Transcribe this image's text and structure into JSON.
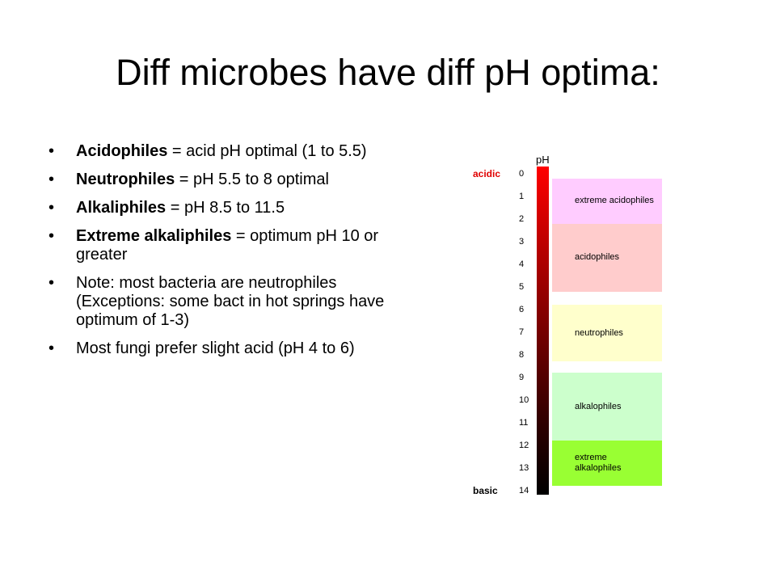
{
  "title": "Diff microbes have diff pH optima:",
  "bullets": [
    {
      "bold": "Acidophiles",
      "text": " = acid pH optimal (1 to 5.5)"
    },
    {
      "bold": "Neutrophiles",
      "text": " = pH 5.5 to 8 optimal"
    },
    {
      "bold": "Alkaliphiles",
      "text": " = pH 8.5 to 11.5"
    },
    {
      "bold": "Extreme alkaliphiles",
      "text": " = optimum pH 10 or greater"
    },
    {
      "bold": "",
      "text": "Note: most bacteria are neutrophiles (Exceptions: some bact in hot springs have optimum of 1-3)"
    },
    {
      "bold": "",
      "text": "Most fungi prefer slight acid (pH 4 to 6)"
    }
  ],
  "bullet_glyph": "•",
  "diagram": {
    "ph_label": "pH",
    "acidic_label": "acidic",
    "basic_label": "basic",
    "ticks": [
      "0",
      "1",
      "2",
      "3",
      "4",
      "5",
      "6",
      "7",
      "8",
      "9",
      "10",
      "11",
      "12",
      "13",
      "14"
    ],
    "regions": [
      {
        "label": "extreme acidophiles",
        "color": "#ffccff",
        "ph_start": 0.2,
        "ph_end": 2.2
      },
      {
        "label": "acidophiles",
        "color": "#ffcccc",
        "ph_start": 2.2,
        "ph_end": 5.2
      },
      {
        "label": "neutrophiles",
        "color": "#ffffcc",
        "ph_start": 5.8,
        "ph_end": 8.3
      },
      {
        "label": "alkalophiles",
        "color": "#ccffcc",
        "ph_start": 8.8,
        "ph_end": 11.8
      },
      {
        "label": "extreme alkalophiles",
        "color": "#99ff33",
        "ph_start": 11.8,
        "ph_end": 13.8
      }
    ]
  }
}
